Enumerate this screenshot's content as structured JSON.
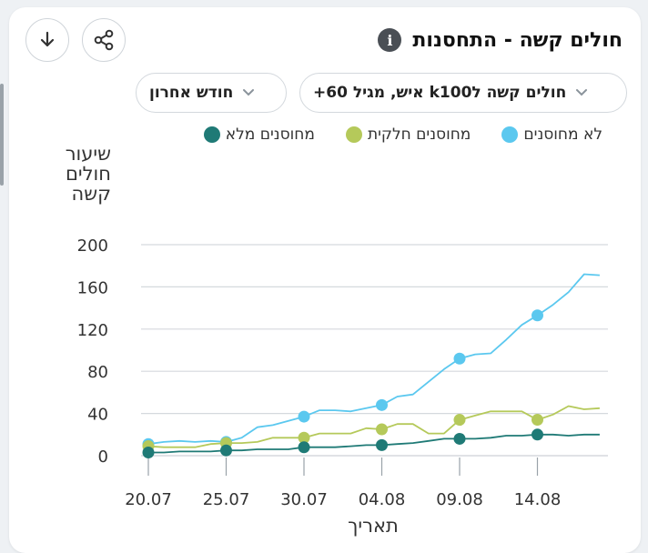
{
  "header": {
    "title": "חולים קשה - התחסנות",
    "info_icon": "info-icon",
    "download_icon": "download-icon",
    "share_icon": "share-icon"
  },
  "filters": {
    "metric_label": "חולים קשה לk100 איש, מגיל 60+",
    "period_label": "חודש אחרון"
  },
  "colors": {
    "unvaccinated": "#5bc8ef",
    "partial": "#b5c95a",
    "full": "#1f7a76",
    "grid": "#d5d9dd"
  },
  "chart_data": {
    "type": "line",
    "ylabel": "שיעור חולים קשה",
    "xlabel": "תאריך",
    "ylim": [
      0,
      200
    ],
    "yticks": [
      0,
      40,
      80,
      120,
      160,
      200
    ],
    "xticks": [
      "20.07",
      "25.07",
      "30.07",
      "04.08",
      "09.08",
      "14.08"
    ],
    "x": [
      "20.07",
      "21.07",
      "22.07",
      "23.07",
      "24.07",
      "25.07",
      "26.07",
      "27.07",
      "28.07",
      "29.07",
      "30.07",
      "31.07",
      "01.08",
      "02.08",
      "03.08",
      "04.08",
      "05.08",
      "06.08",
      "07.08",
      "08.08",
      "09.08",
      "10.08",
      "11.08",
      "12.08",
      "13.08",
      "14.08",
      "15.08",
      "16.08",
      "17.08",
      "18.08"
    ],
    "markers": [
      "20.07",
      "25.07",
      "30.07",
      "04.08",
      "09.08",
      "14.08"
    ],
    "grid": true,
    "legend_position": "top-right",
    "series": [
      {
        "name": "לא מחוסנים",
        "color_key": "unvaccinated",
        "values": [
          11,
          13,
          14,
          13,
          14,
          13,
          17,
          27,
          29,
          33,
          37,
          43,
          43,
          42,
          45,
          48,
          56,
          58,
          70,
          82,
          92,
          96,
          97,
          110,
          124,
          133,
          143,
          155,
          172,
          171
        ]
      },
      {
        "name": "מחוסנים חלקית",
        "color_key": "partial",
        "values": [
          9,
          8,
          8,
          8,
          11,
          12,
          12,
          13,
          17,
          17,
          17,
          21,
          21,
          21,
          26,
          25,
          30,
          30,
          21,
          21,
          34,
          38,
          42,
          42,
          42,
          34,
          39,
          47,
          44,
          45
        ]
      },
      {
        "name": "מחוסנים מלא",
        "color_key": "full",
        "values": [
          3,
          3,
          4,
          4,
          4,
          5,
          5,
          6,
          6,
          6,
          8,
          8,
          8,
          9,
          10,
          10,
          11,
          12,
          14,
          16,
          16,
          16,
          17,
          19,
          19,
          20,
          20,
          19,
          20,
          20
        ]
      }
    ]
  }
}
